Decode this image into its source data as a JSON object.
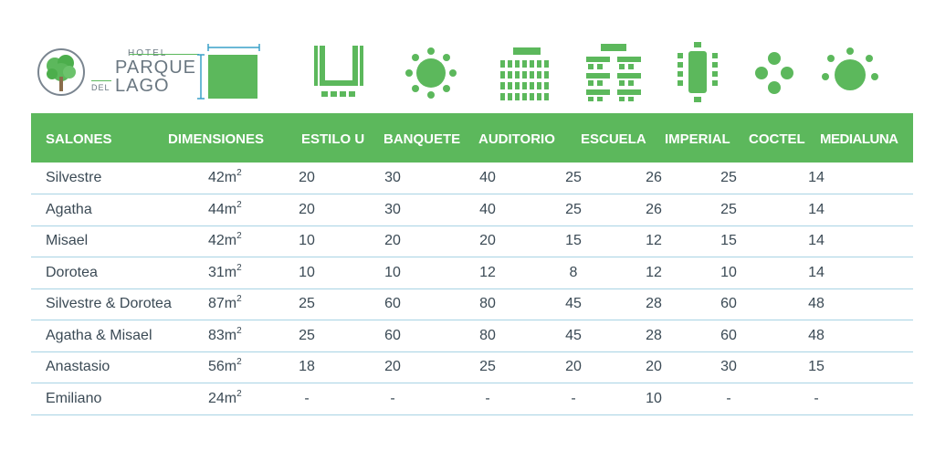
{
  "logo": {
    "hotel": "HOTEL",
    "parque": "PARQUE",
    "del": "DEL",
    "lago": "LAGO"
  },
  "icons": [
    "dimensions-icon",
    "u-shape-icon",
    "banquet-icon",
    "auditorium-icon",
    "school-icon",
    "imperial-icon",
    "cocktail-icon",
    "half-moon-icon"
  ],
  "colors": {
    "accent": "#5cb85c",
    "row_line": "#a8d3e4",
    "text": "#3b4a55"
  },
  "table": {
    "headers": [
      "SALONES",
      "DIMENSIONES",
      "ESTILO U",
      "BANQUETE",
      "AUDITORIO",
      "ESCUELA",
      "IMPERIAL",
      "COCTEL",
      "MEDIALUNA"
    ],
    "rows": [
      {
        "name": "Silvestre",
        "dim": "42m",
        "sup": "2",
        "vals": [
          "20",
          "30",
          "40",
          "25",
          "26",
          "25",
          "14"
        ]
      },
      {
        "name": "Agatha",
        "dim": "44m",
        "sup": "2",
        "vals": [
          "20",
          "30",
          "40",
          "25",
          "26",
          "25",
          "14"
        ]
      },
      {
        "name": "Misael",
        "dim": "42m",
        "sup": "2",
        "vals": [
          "10",
          "20",
          "20",
          "15",
          "12",
          "15",
          "14"
        ]
      },
      {
        "name": "Dorotea",
        "dim": "31m",
        "sup": "2",
        "vals": [
          "10",
          "10",
          "12",
          "8",
          "12",
          "10",
          "14"
        ]
      },
      {
        "name": "Silvestre & Dorotea",
        "dim": "87m",
        "sup": "2",
        "vals": [
          "25",
          "60",
          "80",
          "45",
          "28",
          "60",
          "48"
        ]
      },
      {
        "name": "Agatha & Misael",
        "dim": "83m",
        "sup": "2",
        "vals": [
          "25",
          "60",
          "80",
          "45",
          "28",
          "60",
          "48"
        ]
      },
      {
        "name": "Anastasio",
        "dim": "56m",
        "sup": "2",
        "vals": [
          "18",
          "20",
          "25",
          "20",
          "20",
          "30",
          "15"
        ]
      },
      {
        "name": "Emiliano",
        "dim": "24m",
        "sup": "2",
        "vals": [
          "-",
          "-",
          "-",
          "-",
          "10",
          "-",
          "-"
        ]
      }
    ]
  }
}
